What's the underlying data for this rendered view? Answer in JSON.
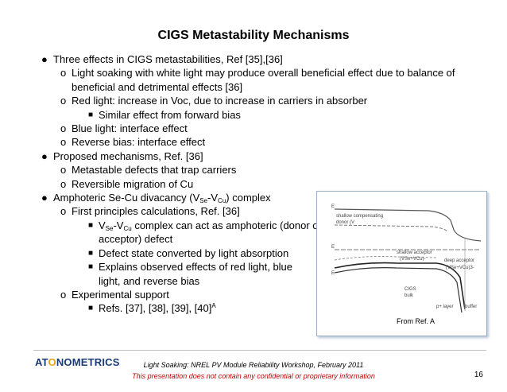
{
  "title": "CIGS Metastability Mechanisms",
  "bullets": {
    "b1": "Three effects in CIGS metastabilities, Ref [35],[36]",
    "b1_1": "Light soaking with white light may produce overall beneficial effect due to balance of beneficial and detrimental effects [36]",
    "b1_2": "Red light: increase in Voc, due to increase in carriers in absorber",
    "b1_2_1": "Similar effect from forward bias",
    "b1_3": "Blue light: interface effect",
    "b1_4": "Reverse bias: interface effect",
    "b2": "Proposed mechanisms, Ref. [36]",
    "b2_1": "Metastable defects that trap carriers",
    "b2_2": "Reversible migration of Cu",
    "b3_pre": "Amphoteric Se-Cu divacancy (V",
    "b3_sub1": "Se",
    "b3_mid": "-V",
    "b3_sub2": "Cu",
    "b3_post": ") complex",
    "b3_1": "First principles calculations, Ref. [36]",
    "b3_1_1_pre": "V",
    "b3_1_1_sub1": "Se",
    "b3_1_1_mid": "-V",
    "b3_1_1_sub2": "Cu",
    "b3_1_1_post": " complex can act as amphoteric (donor or acceptor) defect",
    "b3_1_2": "Defect state converted by light absorption",
    "b3_1_3": "Explains observed effects of red light, blue light, and reverse bias",
    "b3_2": "Experimental support",
    "b3_2_1": "Refs. [37], [38], [39], [40]",
    "b3_2_1_sup": "A"
  },
  "figure": {
    "caption": "From Ref. A",
    "labels": {
      "ec": "E",
      "ec_sub": "C",
      "shallow_comp": "shallow compensating",
      "donor": "donor (V",
      "donor_rest": "Se+VCu)+",
      "ef": "E",
      "ef_sub": "F",
      "ev": "E",
      "ev_sub": "V",
      "shallow_acc": "shallow acceptor",
      "shallow_acc2": "(VSe+VCu)-",
      "deep_acc": "deep acceptor",
      "deep_acc2": "(VSe+VCu)3-",
      "cigs": "CIGS",
      "bulk": "bulk",
      "player": "p+ layer",
      "buffer": "buffer"
    }
  },
  "footer": {
    "logo_a": "AT",
    "logo_o": "O",
    "logo_b": "NOMETRICS",
    "line1": "Light Soaking: NREL PV Module Reliability Workshop, February 2011",
    "line2": "This presentation does not contain any confidential or proprietary information",
    "page": "16"
  }
}
